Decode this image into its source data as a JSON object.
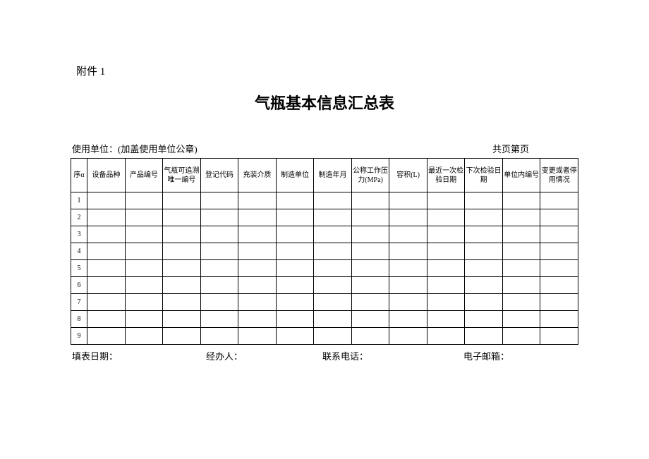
{
  "attachment_label": "附件 1",
  "title": "气瓶基本信息汇总表",
  "header": {
    "unit_label": "使用单位：(加盖使用单位公章)",
    "page_label": "共页第页"
  },
  "table": {
    "columns": [
      "序α",
      "设备品种",
      "产品编号",
      "气瓶可追溯唯一编号",
      "登记代码",
      "充装介质",
      "制造单位",
      "制造年月",
      "公称工作压力(MPa)",
      "容积(L)",
      "最近一次检验日期",
      "下次检验日期",
      "单位内编号",
      "变更或者停用情况"
    ],
    "rows": [
      {
        "seq": "1"
      },
      {
        "seq": "2"
      },
      {
        "seq": "3"
      },
      {
        "seq": "4"
      },
      {
        "seq": "5"
      },
      {
        "seq": "6"
      },
      {
        "seq": "7"
      },
      {
        "seq": "8"
      },
      {
        "seq": "9"
      }
    ]
  },
  "footer": {
    "fill_date": "填表日期：",
    "handler": "经办人：",
    "contact": "联系电话：",
    "email": "电子邮箱："
  },
  "styling": {
    "background_color": "#ffffff",
    "border_color": "#000000",
    "title_fontsize": 22,
    "body_fontsize": 13,
    "table_fontsize": 10,
    "header_row_height": 48,
    "data_row_height": 24
  }
}
